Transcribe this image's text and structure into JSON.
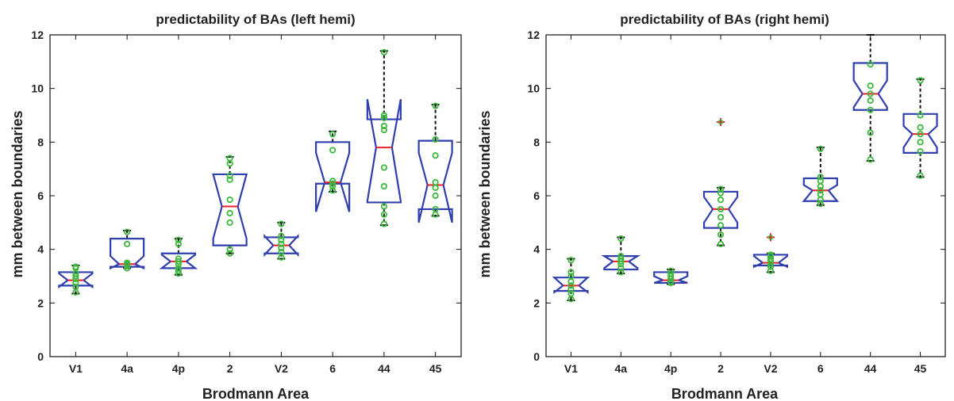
{
  "chart_data": [
    {
      "type": "boxplot",
      "title": "predictability of BAs (left hemi)",
      "xlabel": "Brodmann Area",
      "ylabel": "mm between boundaries",
      "ylim": [
        0,
        12
      ],
      "yticks": [
        "0",
        "2",
        "4",
        "6",
        "8",
        "10",
        "12"
      ],
      "categories": [
        "V1",
        "4a",
        "4p",
        "2",
        "V2",
        "6",
        "44",
        "45"
      ],
      "colors": {
        "box": "#2f3fae",
        "median": "#e8202a",
        "points": "#3cb93c",
        "whisker": "#111111",
        "outlier": "#e8202a"
      },
      "boxes": [
        {
          "q1": 2.65,
          "median": 2.85,
          "q3": 3.15,
          "notch_lo": 2.6,
          "notch_hi": 3.1,
          "whisker_lo": 2.35,
          "whisker_hi": 3.4,
          "points": [
            2.4,
            2.6,
            2.75,
            2.9,
            3.0,
            3.1,
            3.3,
            3.35
          ],
          "outliers": []
        },
        {
          "q1": 3.35,
          "median": 3.45,
          "q3": 4.4,
          "notch_lo": 3.3,
          "notch_hi": 3.75,
          "whisker_lo": 3.3,
          "whisker_hi": 4.7,
          "points": [
            3.3,
            3.4,
            3.45,
            3.5,
            4.2,
            4.65
          ],
          "outliers": []
        },
        {
          "q1": 3.3,
          "median": 3.55,
          "q3": 3.85,
          "notch_lo": 3.3,
          "notch_hi": 3.8,
          "whisker_lo": 3.05,
          "whisker_hi": 4.4,
          "points": [
            3.1,
            3.2,
            3.3,
            3.45,
            3.55,
            3.65,
            4.2,
            4.35
          ],
          "outliers": []
        },
        {
          "q1": 4.15,
          "median": 5.6,
          "q3": 6.8,
          "notch_lo": 4.4,
          "notch_hi": 6.8,
          "whisker_lo": 3.85,
          "whisker_hi": 7.45,
          "points": [
            3.85,
            4.0,
            5.0,
            5.35,
            5.85,
            6.6,
            6.75,
            7.2,
            7.4
          ],
          "outliers": []
        },
        {
          "q1": 3.85,
          "median": 4.15,
          "q3": 4.45,
          "notch_lo": 3.8,
          "notch_hi": 4.5,
          "whisker_lo": 3.65,
          "whisker_hi": 5.0,
          "points": [
            3.7,
            3.9,
            4.05,
            4.2,
            4.35,
            4.5,
            4.95
          ],
          "outliers": []
        },
        {
          "q1": 6.45,
          "median": 6.5,
          "q3": 8.0,
          "notch_lo": 5.4,
          "notch_hi": 7.6,
          "whisker_lo": 6.15,
          "whisker_hi": 8.4,
          "points": [
            6.2,
            6.35,
            6.45,
            6.55,
            7.7,
            8.3
          ],
          "outliers": []
        },
        {
          "q1": 5.75,
          "median": 7.8,
          "q3": 8.85,
          "notch_lo": 5.8,
          "notch_hi": 9.6,
          "whisker_lo": 4.9,
          "whisker_hi": 11.4,
          "points": [
            4.95,
            5.3,
            5.6,
            6.35,
            7.05,
            8.45,
            8.6,
            8.9,
            9.0,
            11.35
          ],
          "outliers": []
        },
        {
          "q1": 5.5,
          "median": 6.4,
          "q3": 8.05,
          "notch_lo": 5.0,
          "notch_hi": 7.6,
          "whisker_lo": 5.25,
          "whisker_hi": 9.4,
          "points": [
            5.3,
            5.5,
            6.0,
            6.3,
            6.5,
            7.5,
            8.1,
            9.35
          ],
          "outliers": []
        }
      ]
    },
    {
      "type": "boxplot",
      "title": "predictability of BAs (right hemi)",
      "xlabel": "Brodmann Area",
      "ylabel": "mm between boundaries",
      "ylim": [
        0,
        12
      ],
      "yticks": [
        "0",
        "2",
        "4",
        "6",
        "8",
        "10",
        "12"
      ],
      "categories": [
        "V1",
        "4a",
        "4p",
        "2",
        "V2",
        "6",
        "44",
        "45"
      ],
      "colors": {
        "box": "#2f3fae",
        "median": "#e8202a",
        "points": "#3cb93c",
        "whisker": "#111111",
        "outlier": "#e8202a"
      },
      "boxes": [
        {
          "q1": 2.45,
          "median": 2.65,
          "q3": 2.95,
          "notch_lo": 2.4,
          "notch_hi": 2.95,
          "whisker_lo": 2.1,
          "whisker_hi": 3.65,
          "points": [
            2.15,
            2.35,
            2.5,
            2.65,
            2.8,
            3.0,
            3.15,
            3.6
          ],
          "outliers": []
        },
        {
          "q1": 3.25,
          "median": 3.55,
          "q3": 3.75,
          "notch_lo": 3.3,
          "notch_hi": 3.75,
          "whisker_lo": 3.1,
          "whisker_hi": 4.45,
          "points": [
            3.15,
            3.3,
            3.45,
            3.55,
            3.65,
            3.75,
            4.4
          ],
          "outliers": []
        },
        {
          "q1": 2.75,
          "median": 2.85,
          "q3": 3.15,
          "notch_lo": 2.75,
          "notch_hi": 3.0,
          "whisker_lo": 2.7,
          "whisker_hi": 3.25,
          "points": [
            2.75,
            2.8,
            2.9,
            3.0,
            3.1,
            3.2
          ],
          "outliers": []
        },
        {
          "q1": 4.8,
          "median": 5.5,
          "q3": 6.15,
          "notch_lo": 5.0,
          "notch_hi": 5.95,
          "whisker_lo": 4.15,
          "whisker_hi": 6.3,
          "points": [
            4.2,
            4.55,
            4.9,
            5.2,
            5.5,
            5.85,
            6.1,
            6.25
          ],
          "outliers": [
            8.75
          ]
        },
        {
          "q1": 3.4,
          "median": 3.5,
          "q3": 3.8,
          "notch_lo": 3.35,
          "notch_hi": 3.75,
          "whisker_lo": 3.15,
          "whisker_hi": 3.85,
          "points": [
            3.2,
            3.35,
            3.45,
            3.55,
            3.65,
            3.75,
            3.8
          ],
          "outliers": [
            4.45
          ]
        },
        {
          "q1": 5.8,
          "median": 6.2,
          "q3": 6.65,
          "notch_lo": 5.8,
          "notch_hi": 6.4,
          "whisker_lo": 5.65,
          "whisker_hi": 7.8,
          "points": [
            5.7,
            5.85,
            6.05,
            6.2,
            6.35,
            6.55,
            6.7,
            7.75
          ],
          "outliers": []
        },
        {
          "q1": 9.2,
          "median": 9.8,
          "q3": 10.95,
          "notch_lo": 9.3,
          "notch_hi": 10.3,
          "whisker_lo": 7.3,
          "whisker_hi": 12.0,
          "points": [
            7.35,
            8.35,
            9.2,
            9.55,
            9.8,
            10.1,
            10.9
          ],
          "outliers": []
        },
        {
          "q1": 7.6,
          "median": 8.3,
          "q3": 9.05,
          "notch_lo": 7.8,
          "notch_hi": 8.6,
          "whisker_lo": 6.7,
          "whisker_hi": 10.35,
          "points": [
            6.75,
            7.65,
            8.0,
            8.3,
            8.55,
            9.0,
            10.3
          ],
          "outliers": []
        }
      ]
    }
  ]
}
